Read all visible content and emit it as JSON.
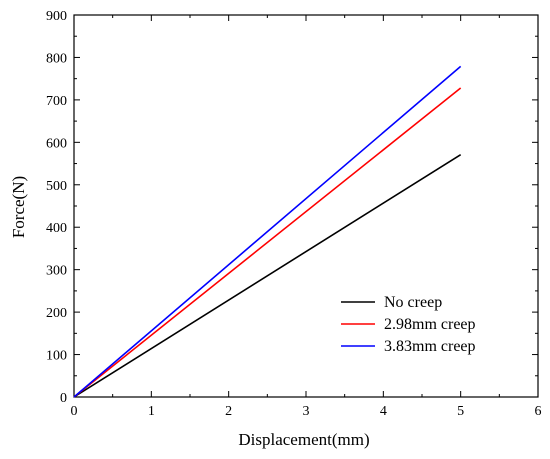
{
  "chart_data": {
    "type": "line",
    "xlabel": "Displacement(mm)",
    "ylabel": "Force(N)",
    "xlim": [
      0,
      6
    ],
    "ylim": [
      0,
      900
    ],
    "xticks": [
      0,
      1,
      2,
      3,
      4,
      5,
      6
    ],
    "yticks": [
      0,
      100,
      200,
      300,
      400,
      500,
      600,
      700,
      800,
      900
    ],
    "grid": false,
    "legend_position": "bottom-right",
    "series": [
      {
        "name": "No creep",
        "color": "#000000",
        "x": [
          0,
          5
        ],
        "y": [
          0,
          571
        ]
      },
      {
        "name": "2.98mm creep",
        "color": "#ff0000",
        "x": [
          0,
          5
        ],
        "y": [
          0,
          728
        ]
      },
      {
        "name": "3.83mm creep",
        "color": "#0000ff",
        "x": [
          0,
          5
        ],
        "y": [
          0,
          779
        ]
      }
    ]
  }
}
